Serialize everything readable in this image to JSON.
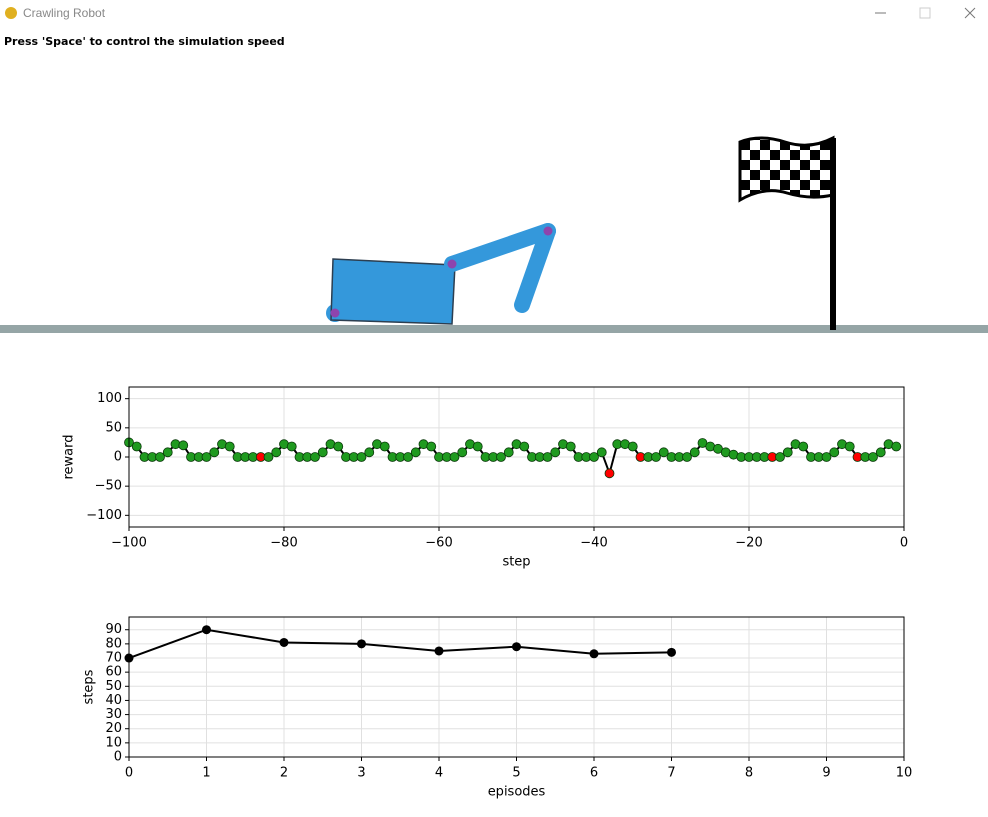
{
  "window": {
    "title": "Crawling Robot"
  },
  "instruction": "Press 'Space' to control the simulation speed",
  "chart_data": [
    {
      "type": "line",
      "xlabel": "step",
      "ylabel": "reward",
      "xlim": [
        -100,
        0
      ],
      "ylim": [
        -120,
        120
      ],
      "grid": true,
      "xticks": [
        {
          "value": -100,
          "label": "−100"
        },
        {
          "value": -80,
          "label": "−80"
        },
        {
          "value": -60,
          "label": "−60"
        },
        {
          "value": -40,
          "label": "−40"
        },
        {
          "value": -20,
          "label": "−20"
        },
        0
      ],
      "yticks": [
        {
          "value": -100,
          "label": "−100"
        },
        {
          "value": -50,
          "label": "−50"
        },
        0,
        50,
        100
      ],
      "x": [
        -100,
        -99,
        -98,
        -97,
        -96,
        -95,
        -94,
        -93,
        -92,
        -91,
        -90,
        -89,
        -88,
        -87,
        -86,
        -85,
        -84,
        -83,
        -82,
        -81,
        -80,
        -79,
        -78,
        -77,
        -76,
        -75,
        -74,
        -73,
        -72,
        -71,
        -70,
        -69,
        -68,
        -67,
        -66,
        -65,
        -64,
        -63,
        -62,
        -61,
        -60,
        -59,
        -58,
        -57,
        -56,
        -55,
        -54,
        -53,
        -52,
        -51,
        -50,
        -49,
        -48,
        -47,
        -46,
        -45,
        -44,
        -43,
        -42,
        -41,
        -40,
        -39,
        -38,
        -37,
        -36,
        -35,
        -34,
        -33,
        -32,
        -31,
        -30,
        -29,
        -28,
        -27,
        -26,
        -25,
        -24,
        -23,
        -22,
        -21,
        -20,
        -19,
        -18,
        -17,
        -16,
        -15,
        -14,
        -13,
        -12,
        -11,
        -10,
        -9,
        -8,
        -7,
        -6,
        -5,
        -4,
        -3,
        -2,
        -1
      ],
      "series": [
        {
          "color": "#000000",
          "values": [
            25,
            18,
            0,
            0,
            0,
            8,
            22,
            20,
            0,
            0,
            0,
            8,
            22,
            18,
            0,
            0,
            0,
            0,
            0,
            8,
            22,
            18,
            0,
            0,
            0,
            8,
            22,
            18,
            0,
            0,
            0,
            8,
            22,
            18,
            0,
            0,
            0,
            8,
            22,
            18,
            0,
            0,
            0,
            8,
            22,
            18,
            0,
            0,
            0,
            8,
            22,
            18,
            0,
            0,
            0,
            8,
            22,
            18,
            0,
            0,
            0,
            8,
            -28,
            22,
            22,
            18,
            0,
            0,
            0,
            8,
            0,
            0,
            0,
            8,
            24,
            18,
            14,
            8,
            4,
            0,
            0,
            0,
            0,
            0,
            0,
            8,
            22,
            18,
            0,
            0,
            0,
            8,
            22,
            18,
            0,
            0,
            0,
            8,
            22,
            18
          ],
          "marker_colors": [
            "#1f9a1f",
            "#1f9a1f",
            "#1f9a1f",
            "#1f9a1f",
            "#1f9a1f",
            "#1f9a1f",
            "#1f9a1f",
            "#1f9a1f",
            "#1f9a1f",
            "#1f9a1f",
            "#1f9a1f",
            "#1f9a1f",
            "#1f9a1f",
            "#1f9a1f",
            "#1f9a1f",
            "#1f9a1f",
            "#1f9a1f",
            "#ff0000",
            "#1f9a1f",
            "#1f9a1f",
            "#1f9a1f",
            "#1f9a1f",
            "#1f9a1f",
            "#1f9a1f",
            "#1f9a1f",
            "#1f9a1f",
            "#1f9a1f",
            "#1f9a1f",
            "#1f9a1f",
            "#1f9a1f",
            "#1f9a1f",
            "#1f9a1f",
            "#1f9a1f",
            "#1f9a1f",
            "#1f9a1f",
            "#1f9a1f",
            "#1f9a1f",
            "#1f9a1f",
            "#1f9a1f",
            "#1f9a1f",
            "#1f9a1f",
            "#1f9a1f",
            "#1f9a1f",
            "#1f9a1f",
            "#1f9a1f",
            "#1f9a1f",
            "#1f9a1f",
            "#1f9a1f",
            "#1f9a1f",
            "#1f9a1f",
            "#1f9a1f",
            "#1f9a1f",
            "#1f9a1f",
            "#1f9a1f",
            "#1f9a1f",
            "#1f9a1f",
            "#1f9a1f",
            "#1f9a1f",
            "#1f9a1f",
            "#1f9a1f",
            "#1f9a1f",
            "#1f9a1f",
            "#ff0000",
            "#1f9a1f",
            "#1f9a1f",
            "#1f9a1f",
            "#ff0000",
            "#1f9a1f",
            "#1f9a1f",
            "#1f9a1f",
            "#1f9a1f",
            "#1f9a1f",
            "#1f9a1f",
            "#1f9a1f",
            "#1f9a1f",
            "#1f9a1f",
            "#1f9a1f",
            "#1f9a1f",
            "#1f9a1f",
            "#1f9a1f",
            "#1f9a1f",
            "#1f9a1f",
            "#1f9a1f",
            "#ff0000",
            "#1f9a1f",
            "#1f9a1f",
            "#1f9a1f",
            "#1f9a1f",
            "#1f9a1f",
            "#1f9a1f",
            "#1f9a1f",
            "#1f9a1f",
            "#1f9a1f",
            "#1f9a1f",
            "#ff0000",
            "#1f9a1f",
            "#1f9a1f",
            "#1f9a1f",
            "#1f9a1f",
            "#1f9a1f"
          ]
        }
      ]
    },
    {
      "type": "line",
      "xlabel": "episodes",
      "ylabel": "steps",
      "xlim": [
        0,
        10
      ],
      "ylim": [
        0,
        99
      ],
      "grid": true,
      "xticks": [
        0,
        1,
        2,
        3,
        4,
        5,
        6,
        7,
        8,
        9,
        10
      ],
      "yticks": [
        0,
        10,
        20,
        30,
        40,
        50,
        60,
        70,
        80,
        90
      ],
      "x": [
        0,
        1,
        2,
        3,
        4,
        5,
        6,
        7
      ],
      "series": [
        {
          "color": "#000000",
          "values": [
            70,
            90,
            81,
            80,
            75,
            78,
            73,
            74
          ]
        }
      ]
    }
  ]
}
